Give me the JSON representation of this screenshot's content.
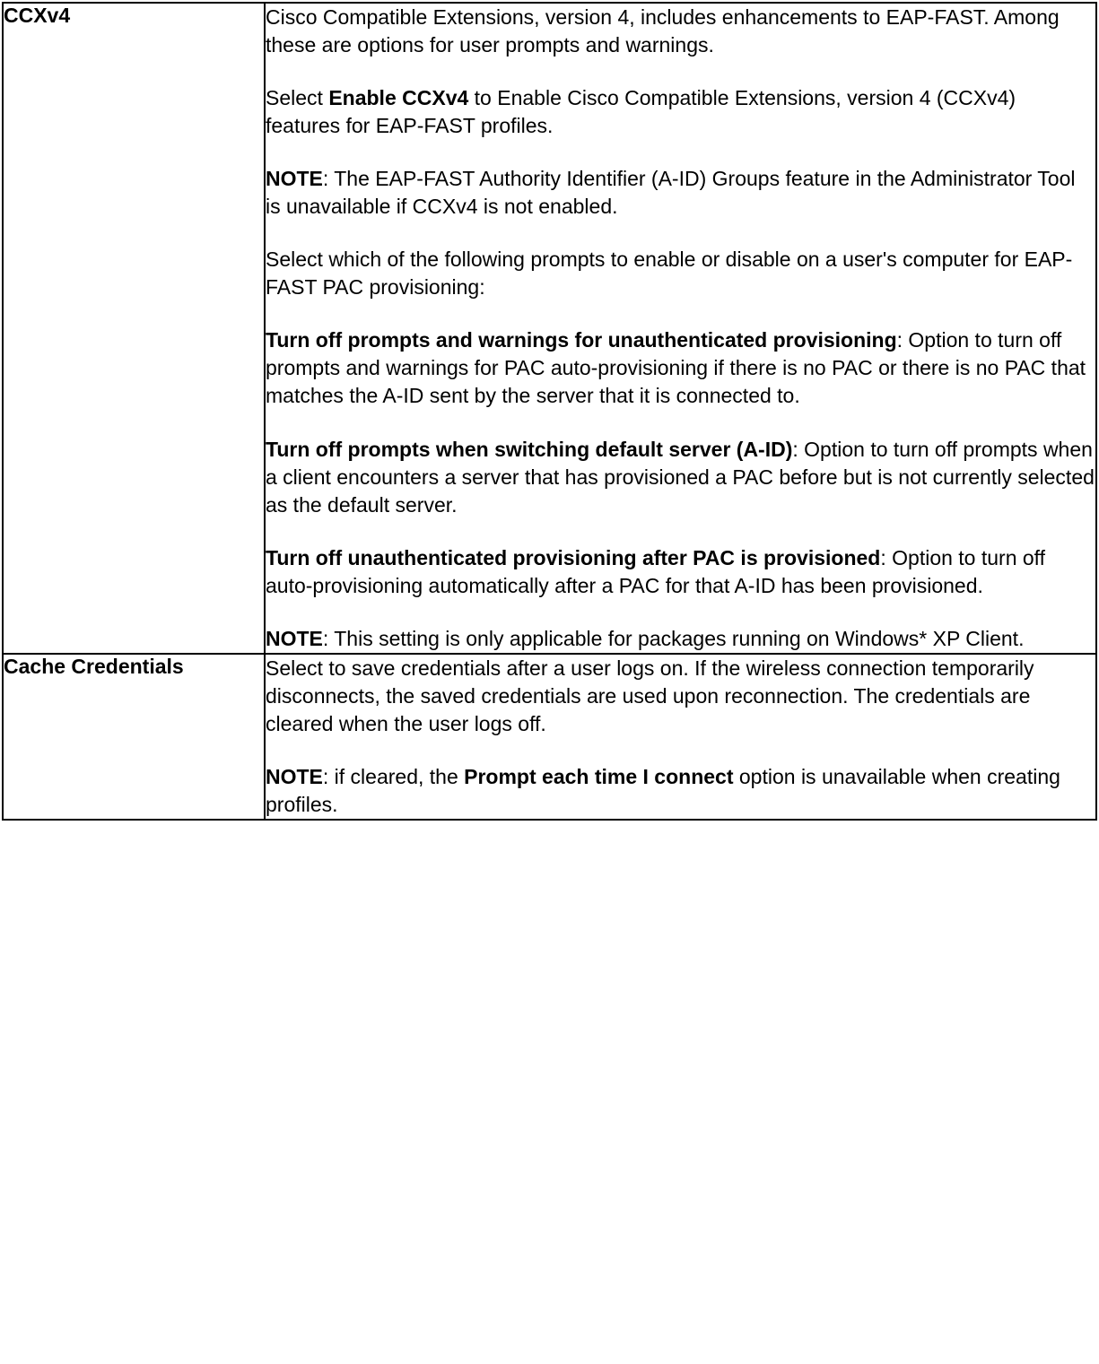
{
  "rows": [
    {
      "label": "CCXv4",
      "paragraphs": [
        [
          {
            "text": "Cisco Compatible Extensions, version 4, includes enhancements to EAP-FAST. Among these are options for user prompts and warnings."
          }
        ],
        [
          {
            "text": "Select "
          },
          {
            "text": "Enable CCXv4",
            "bold": true
          },
          {
            "text": " to Enable Cisco Compatible Extensions, version 4 (CCXv4) features for EAP-FAST profiles."
          }
        ],
        [
          {
            "text": "NOTE",
            "bold": true
          },
          {
            "text": ": The EAP-FAST Authority Identifier (A-ID) Groups feature in the Administrator Tool is unavailable if CCXv4 is not enabled."
          }
        ],
        [
          {
            "text": "Select which of the following prompts to enable or disable on a user's computer for EAP-FAST PAC provisioning:"
          }
        ],
        [
          {
            "text": "Turn off prompts and warnings for unauthenticated provisioning",
            "bold": true
          },
          {
            "text": ": Option to turn off prompts and warnings for PAC auto-provisioning if there is no PAC or there is no PAC that matches the A-ID sent by the server that it is connected to."
          }
        ],
        [
          {
            "text": "Turn off prompts when switching default server (A-ID)",
            "bold": true
          },
          {
            "text": ": Option to turn off prompts when a client encounters a server that has provisioned a PAC before but is not currently selected as the default server."
          }
        ],
        [
          {
            "text": "Turn off unauthenticated provisioning after PAC is provisioned",
            "bold": true
          },
          {
            "text": ": Option to turn off auto-provisioning automatically after a PAC for that A-ID has been provisioned."
          }
        ],
        [
          {
            "text": "NOTE",
            "bold": true
          },
          {
            "text": ": This setting is only applicable for packages running on Windows* XP Client."
          }
        ]
      ]
    },
    {
      "label": "Cache Credentials",
      "paragraphs": [
        [
          {
            "text": "Select to save credentials after a user logs on. If the wireless connection temporarily disconnects, the saved credentials are used upon reconnection. The credentials are cleared when the user logs off."
          }
        ],
        [
          {
            "text": "NOTE",
            "bold": true
          },
          {
            "text": ": if cleared, the "
          },
          {
            "text": "Prompt each time I connect",
            "bold": true
          },
          {
            "text": " option is unavailable when creating profiles."
          }
        ]
      ]
    }
  ]
}
